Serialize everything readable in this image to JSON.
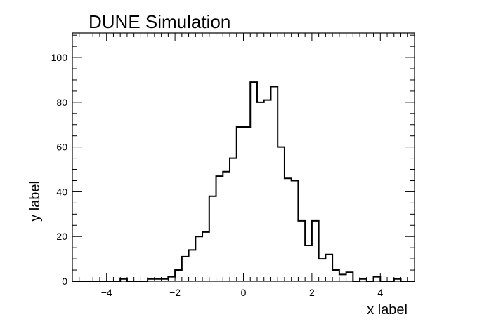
{
  "chart_data": {
    "type": "histogram",
    "title": "DUNE Simulation",
    "xlabel": "x label",
    "ylabel": "y label",
    "xlim": [
      -5,
      5
    ],
    "ylim": [
      0,
      111
    ],
    "x_ticks": [
      -4,
      -2,
      0,
      2,
      4
    ],
    "y_ticks": [
      0,
      20,
      40,
      60,
      80,
      100
    ],
    "bin_width": 0.2,
    "bin_edges_start": -5,
    "counts": [
      0,
      0,
      0,
      0,
      0,
      0,
      0,
      1,
      0,
      0,
      0,
      1,
      1,
      1,
      2,
      5,
      11,
      14,
      20,
      22,
      38,
      47,
      49,
      55,
      69,
      69,
      89,
      80,
      81,
      87,
      60,
      46,
      45,
      27,
      16,
      27,
      10,
      12,
      5,
      3,
      4,
      0,
      1,
      0,
      2,
      0,
      0,
      1,
      0,
      0
    ],
    "grid": false,
    "legend": "none",
    "line_color": "#000000"
  }
}
